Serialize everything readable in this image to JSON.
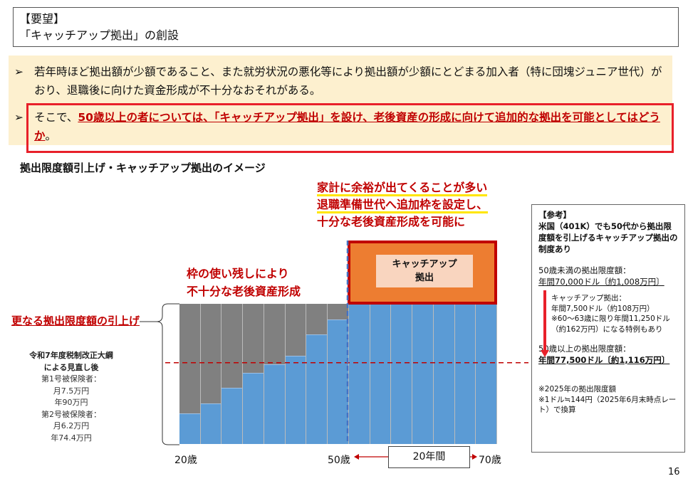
{
  "request": {
    "label": "【要望】",
    "title": "「キャッチアップ拠出」の創設"
  },
  "bullets": [
    {
      "marker": "➢",
      "text": "若年時ほど拠出額が少額であること、また就労状況の悪化等により拠出額が少額にとどまる加入者（特に団塊ジュニア世代）がおり、退職後に向けた資金形成が不十分なおそれがある。"
    },
    {
      "marker": "➢",
      "lead": "そこで、",
      "emphasis": "50歳以上の者については、「キャッチアップ拠出」を設け、老後資産の形成に向けて追加的な拠出を可能としてはどうか",
      "tail": "。"
    }
  ],
  "section_title": "拠出限度額引上げ・キャッチアップ拠出のイメージ",
  "callout": {
    "line1": "家計に余裕が出てくることが多い",
    "line2": "退職準備世代へ追加枠を設定し、",
    "line3": "十分な老後資産形成を可能に"
  },
  "leftover": {
    "line1": "枠の使い残しにより",
    "line2": "不十分な老後資産形成"
  },
  "raise_label": "更なる拠出限度額の引上げ",
  "left_note": {
    "l1": "令和7年度税制改正大綱",
    "l2": "による見直し後",
    "l3": "第1号被保険者：",
    "l4": "月7.5万円",
    "l5": "年90万円",
    "l6": "第2号被保険者：",
    "l7": "月6.2万円",
    "l8": "年74.4万円"
  },
  "diagram": {
    "used_share_by_period": [
      0.22,
      0.29,
      0.4,
      0.51,
      0.57,
      0.63,
      0.78,
      0.89,
      1,
      1,
      1,
      1,
      1,
      1,
      1
    ],
    "previous_limit_share": 0.58,
    "colors": {
      "used": "#5b9bd5",
      "unused": "#808080",
      "catchup": "#ed7d31",
      "border": "#c00000"
    },
    "catchup_label_1": "キャッチアップ",
    "catchup_label_2": "拠出",
    "age_start": "20歳",
    "age_mid": "50歳",
    "age_end": "70歳",
    "span": "20年間"
  },
  "reference": {
    "head": "【参考】",
    "intro": "米国（401K）でも50代から拠出限度額を引上げるキャッチアップ拠出の制度あり",
    "under50_label": "50歳未満の拠出限度額：",
    "under50_value": "年間70,000ドル〔約1,008万円〕",
    "catchup_l1": "キャッチアップ拠出：",
    "catchup_l2": "年間7,500ドル（約108万円）",
    "catchup_l3": "※60～63歳に限り年間11,250ドル（約162万円）になる特例もあり",
    "over50_label": "50歳以上の拠出限度額：",
    "over50_value": "年間77,500ドル〔約1,116万円〕",
    "note1": "※2025年の拠出限度額",
    "note2": "※1ドル≒144円（2025年6月末時点レート）で換算"
  },
  "page_number": "16"
}
